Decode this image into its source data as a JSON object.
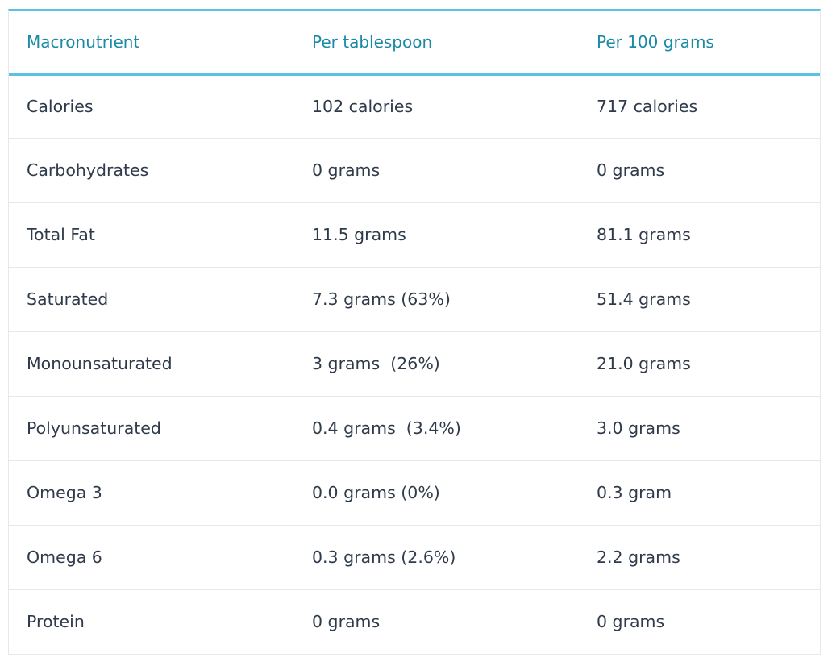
{
  "table": {
    "headers": [
      "Macronutrient",
      "Per tablespoon",
      "Per 100 grams"
    ],
    "rows": [
      [
        "Calories",
        "102 calories",
        "717 calories"
      ],
      [
        "Carbohydrates",
        "0 grams",
        "0 grams"
      ],
      [
        "Total Fat",
        "11.5 grams",
        "81.1 grams"
      ],
      [
        "Saturated",
        "7.3 grams (63%)",
        "51.4 grams"
      ],
      [
        "Monounsaturated",
        "3 grams  (26%)",
        "21.0 grams"
      ],
      [
        "Polyunsaturated",
        "0.4 grams  (3.4%)",
        "3.0 grams"
      ],
      [
        "Omega 3",
        "0.0 grams (0%)",
        "0.3 gram"
      ],
      [
        "Omega 6",
        "0.3 grams (2.6%)",
        "2.2 grams"
      ],
      [
        "Protein",
        "0 grams",
        "0 grams"
      ]
    ]
  },
  "colors": {
    "accent": "#5bc3e1",
    "header_text": "#1a8aa6",
    "body_text": "#2f3a4a",
    "row_border": "#e6e9ec"
  }
}
